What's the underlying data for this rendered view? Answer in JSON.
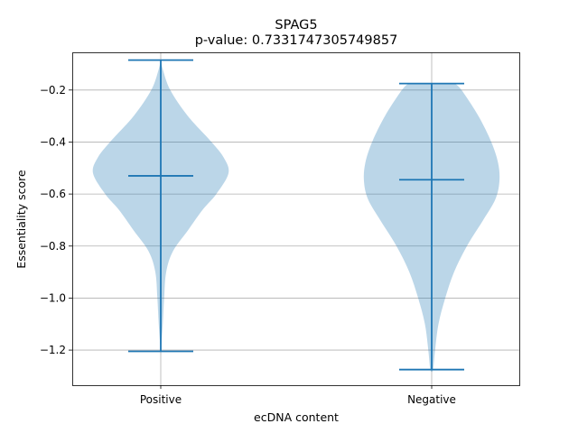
{
  "chart_data": {
    "type": "violin",
    "title": "SPAG5",
    "subtitle": "p-value: 0.7331747305749857",
    "xlabel": "ecDNA content",
    "ylabel": "Essentiality score",
    "categories": [
      "Positive",
      "Negative"
    ],
    "ylim": [
      -1.335,
      -0.055
    ],
    "yticks": [
      -0.2,
      -0.4,
      -0.6,
      -0.8,
      -1.0,
      -1.2
    ],
    "ytick_labels": [
      "−0.2",
      "−0.4",
      "−0.6",
      "−0.8",
      "−1.0",
      "−1.2"
    ],
    "grid": true,
    "color": "#1f77b4",
    "violins": [
      {
        "name": "Positive",
        "max": -0.085,
        "median": -0.53,
        "min": -1.205,
        "density": [
          [
            -0.085,
            0.0
          ],
          [
            -0.12,
            0.03
          ],
          [
            -0.2,
            0.14
          ],
          [
            -0.3,
            0.4
          ],
          [
            -0.4,
            0.75
          ],
          [
            -0.46,
            0.93
          ],
          [
            -0.52,
            1.0
          ],
          [
            -0.6,
            0.82
          ],
          [
            -0.66,
            0.62
          ],
          [
            -0.74,
            0.4
          ],
          [
            -0.82,
            0.18
          ],
          [
            -0.9,
            0.08
          ],
          [
            -1.0,
            0.05
          ],
          [
            -1.1,
            0.03
          ],
          [
            -1.205,
            0.0
          ]
        ]
      },
      {
        "name": "Negative",
        "max": -0.175,
        "median": -0.545,
        "min": -1.275,
        "density": [
          [
            -0.175,
            0.34
          ],
          [
            -0.2,
            0.44
          ],
          [
            -0.3,
            0.69
          ],
          [
            -0.4,
            0.88
          ],
          [
            -0.48,
            0.98
          ],
          [
            -0.55,
            1.0
          ],
          [
            -0.62,
            0.94
          ],
          [
            -0.7,
            0.76
          ],
          [
            -0.8,
            0.52
          ],
          [
            -0.9,
            0.33
          ],
          [
            -1.0,
            0.2
          ],
          [
            -1.1,
            0.1
          ],
          [
            -1.2,
            0.05
          ],
          [
            -1.275,
            0.02
          ]
        ]
      }
    ]
  }
}
